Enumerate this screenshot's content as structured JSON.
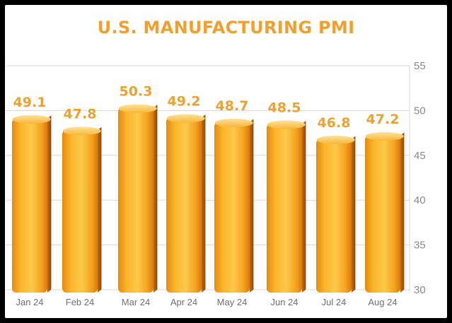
{
  "chart_data": {
    "type": "bar",
    "title": "U.S. MANUFACTURING PMI",
    "categories": [
      "Jan 24",
      "Feb 24",
      "Mar 24",
      "Apr 24",
      "May 24",
      "Jun 24",
      "Jul 24",
      "Aug 24"
    ],
    "series": [
      {
        "values": [
          49.1,
          47.8,
          50.3,
          49.2,
          48.7,
          48.5,
          46.8,
          47.2
        ]
      }
    ],
    "data_labels": [
      "49.1",
      "47.8",
      "50.3",
      "49.2",
      "48.7",
      "48.5",
      "46.8",
      "47.2"
    ],
    "yticks": [
      "30",
      "35",
      "40",
      "45",
      "50",
      "55"
    ],
    "ylim": [
      30,
      55
    ],
    "y_axis_position": "right",
    "grid": true,
    "colors": {
      "bar_light": "#fdc94a",
      "bar_mid": "#f7a51e",
      "bar_dark": "#c86b08",
      "title": "#f0a030",
      "data_label": "#eba232",
      "grid": "#d9d9d9"
    }
  }
}
